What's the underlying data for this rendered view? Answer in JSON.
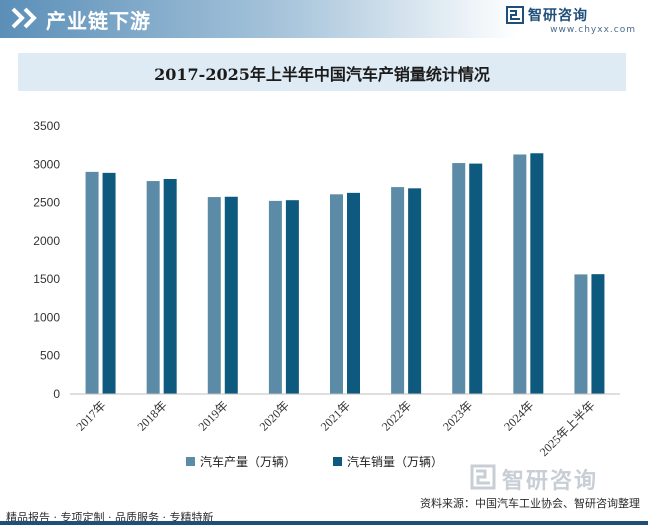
{
  "header": {
    "section_title": "产业链下游",
    "brand_name": "智研咨询",
    "brand_url": "www.chyxx.com"
  },
  "chart_data": {
    "type": "bar",
    "title": "2017-2025年上半年中国汽车产销量统计情况",
    "categories": [
      "2017年",
      "2018年",
      "2019年",
      "2020年",
      "2021年",
      "2022年",
      "2023年",
      "2024年",
      "2025年上半年"
    ],
    "series": [
      {
        "name": "汽车产量（万辆）",
        "color": "#5b8ba6",
        "values": [
          2901,
          2781,
          2572,
          2522,
          2608,
          2702,
          3016,
          3128,
          1562
        ]
      },
      {
        "name": "汽车销量（万辆）",
        "color": "#0e5a7e",
        "values": [
          2888,
          2808,
          2576,
          2531,
          2627,
          2686,
          3009,
          3144,
          1565
        ]
      }
    ],
    "y_ticks": [
      "0",
      "500",
      "1000",
      "1500",
      "2000",
      "2500",
      "3000",
      "3500"
    ],
    "ylim": [
      0,
      3500
    ],
    "xlabel": "",
    "ylabel": "",
    "legend_position": "bottom",
    "grid": false
  },
  "footer": {
    "tagline": "精品报告 · 专项定制 · 品质服务 · 专精特新",
    "source": "资料来源：中国汽车工业协会、智研咨询整理",
    "watermark_text": "智研咨询"
  }
}
